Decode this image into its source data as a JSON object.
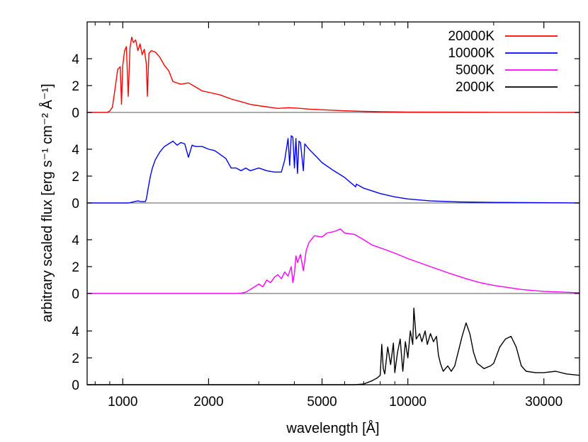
{
  "chart_data": {
    "type": "line",
    "xlabel": "wavelength [Å]",
    "ylabel": "arbitrary scaled flux [erg s⁻¹ cm⁻² Å⁻¹]",
    "xscale": "log",
    "xlim": [
      750,
      40000
    ],
    "xticks": [
      1000,
      2000,
      5000,
      10000,
      30000
    ],
    "xtick_labels": [
      "1000",
      "2000",
      "5000",
      "10000",
      "30000"
    ],
    "yticks": [
      0,
      2,
      4
    ],
    "ytick_labels": [
      "0",
      "2",
      "4"
    ],
    "panel_ylim": [
      0,
      6
    ],
    "legend": "top-right",
    "grid": false,
    "series": [
      {
        "name": "20000K",
        "color": "#ff0000",
        "points": [
          [
            750,
            0
          ],
          [
            880,
            0
          ],
          [
            900,
            0.1
          ],
          [
            920,
            0.4
          ],
          [
            940,
            1.8
          ],
          [
            960,
            3.2
          ],
          [
            980,
            3.4
          ],
          [
            990,
            0.6
          ],
          [
            1000,
            3.5
          ],
          [
            1015,
            4.6
          ],
          [
            1030,
            4.9
          ],
          [
            1045,
            1.2
          ],
          [
            1060,
            4.8
          ],
          [
            1075,
            5.6
          ],
          [
            1090,
            5.2
          ],
          [
            1110,
            5.4
          ],
          [
            1130,
            4.6
          ],
          [
            1150,
            5.1
          ],
          [
            1170,
            4.3
          ],
          [
            1190,
            4.7
          ],
          [
            1210,
            3.6
          ],
          [
            1220,
            1.2
          ],
          [
            1235,
            4.4
          ],
          [
            1260,
            4.6
          ],
          [
            1300,
            4.5
          ],
          [
            1350,
            4.1
          ],
          [
            1400,
            3.5
          ],
          [
            1450,
            3.1
          ],
          [
            1500,
            2.3
          ],
          [
            1600,
            2.1
          ],
          [
            1700,
            2.2
          ],
          [
            1800,
            1.9
          ],
          [
            1900,
            1.6
          ],
          [
            2000,
            1.5
          ],
          [
            2200,
            1.3
          ],
          [
            2400,
            1.0
          ],
          [
            2600,
            0.8
          ],
          [
            2800,
            0.6
          ],
          [
            3000,
            0.5
          ],
          [
            3500,
            0.3
          ],
          [
            3800,
            0.35
          ],
          [
            4100,
            0.32
          ],
          [
            4500,
            0.25
          ],
          [
            5000,
            0.2
          ],
          [
            6000,
            0.12
          ],
          [
            7000,
            0.08
          ],
          [
            8000,
            0.06
          ],
          [
            10000,
            0.03
          ],
          [
            15000,
            0.02
          ],
          [
            20000,
            0.01
          ],
          [
            30000,
            0.005
          ],
          [
            40000,
            0
          ]
        ]
      },
      {
        "name": "10000K",
        "color": "#0000ff",
        "points": [
          [
            750,
            0
          ],
          [
            1050,
            0
          ],
          [
            1100,
            0.1
          ],
          [
            1130,
            0.15
          ],
          [
            1160,
            0.1
          ],
          [
            1200,
            0.1
          ],
          [
            1210,
            0.3
          ],
          [
            1230,
            1.2
          ],
          [
            1250,
            2.0
          ],
          [
            1270,
            2.6
          ],
          [
            1300,
            3.2
          ],
          [
            1350,
            3.8
          ],
          [
            1400,
            4.2
          ],
          [
            1450,
            4.4
          ],
          [
            1500,
            4.6
          ],
          [
            1550,
            4.3
          ],
          [
            1600,
            4.5
          ],
          [
            1650,
            4.4
          ],
          [
            1700,
            3.4
          ],
          [
            1750,
            4.3
          ],
          [
            1800,
            4.2
          ],
          [
            1900,
            4.2
          ],
          [
            2000,
            4.0
          ],
          [
            2100,
            3.9
          ],
          [
            2200,
            3.6
          ],
          [
            2300,
            3.3
          ],
          [
            2400,
            2.6
          ],
          [
            2500,
            2.6
          ],
          [
            2600,
            2.4
          ],
          [
            2700,
            2.6
          ],
          [
            2800,
            2.4
          ],
          [
            3000,
            2.6
          ],
          [
            3200,
            2.4
          ],
          [
            3400,
            2.3
          ],
          [
            3600,
            2.3
          ],
          [
            3700,
            3.2
          ],
          [
            3800,
            4.8
          ],
          [
            3850,
            2.8
          ],
          [
            3900,
            5.0
          ],
          [
            3950,
            4.9
          ],
          [
            4000,
            2.6
          ],
          [
            4050,
            4.8
          ],
          [
            4100,
            2.2
          ],
          [
            4150,
            4.6
          ],
          [
            4200,
            4.5
          ],
          [
            4300,
            2.4
          ],
          [
            4350,
            4.4
          ],
          [
            4500,
            4.0
          ],
          [
            4800,
            3.4
          ],
          [
            5000,
            3.0
          ],
          [
            5500,
            2.4
          ],
          [
            6000,
            1.9
          ],
          [
            6560,
            1.2
          ],
          [
            6600,
            1.4
          ],
          [
            7000,
            1.1
          ],
          [
            8000,
            0.7
          ],
          [
            9000,
            0.45
          ],
          [
            10000,
            0.3
          ],
          [
            12000,
            0.15
          ],
          [
            15000,
            0.08
          ],
          [
            20000,
            0.04
          ],
          [
            30000,
            0.02
          ],
          [
            40000,
            0
          ]
        ]
      },
      {
        "name": "5000K",
        "color": "#ff00ff",
        "points": [
          [
            750,
            0
          ],
          [
            2500,
            0
          ],
          [
            2600,
            0.02
          ],
          [
            2700,
            0.1
          ],
          [
            2800,
            0.3
          ],
          [
            2900,
            0.5
          ],
          [
            3000,
            0.7
          ],
          [
            3100,
            0.5
          ],
          [
            3200,
            1.0
          ],
          [
            3300,
            0.8
          ],
          [
            3400,
            1.2
          ],
          [
            3500,
            1.4
          ],
          [
            3600,
            1.1
          ],
          [
            3700,
            1.6
          ],
          [
            3800,
            1.3
          ],
          [
            3900,
            2.0
          ],
          [
            3950,
            0.8
          ],
          [
            4000,
            1.5
          ],
          [
            4050,
            2.8
          ],
          [
            4100,
            2.3
          ],
          [
            4200,
            2.9
          ],
          [
            4300,
            1.7
          ],
          [
            4400,
            3.2
          ],
          [
            4500,
            3.8
          ],
          [
            4700,
            4.3
          ],
          [
            5000,
            4.2
          ],
          [
            5200,
            4.5
          ],
          [
            5500,
            4.6
          ],
          [
            5800,
            4.8
          ],
          [
            6000,
            4.5
          ],
          [
            6500,
            4.4
          ],
          [
            7000,
            4.0
          ],
          [
            7500,
            3.6
          ],
          [
            8000,
            3.4
          ],
          [
            9000,
            3.0
          ],
          [
            10000,
            2.6
          ],
          [
            12000,
            2.0
          ],
          [
            14000,
            1.5
          ],
          [
            16000,
            1.1
          ],
          [
            18000,
            0.8
          ],
          [
            20000,
            0.6
          ],
          [
            25000,
            0.3
          ],
          [
            30000,
            0.15
          ],
          [
            35000,
            0.1
          ],
          [
            40000,
            0.05
          ]
        ]
      },
      {
        "name": "2000K",
        "color": "#000000",
        "points": [
          [
            750,
            0
          ],
          [
            6500,
            0
          ],
          [
            7000,
            0.05
          ],
          [
            7500,
            0.3
          ],
          [
            7800,
            0.5
          ],
          [
            8000,
            0.7
          ],
          [
            8100,
            3.0
          ],
          [
            8200,
            1.2
          ],
          [
            8300,
            0.8
          ],
          [
            8500,
            2.8
          ],
          [
            8700,
            1.5
          ],
          [
            8900,
            3.1
          ],
          [
            9000,
            0.9
          ],
          [
            9200,
            2.4
          ],
          [
            9400,
            3.4
          ],
          [
            9600,
            1.0
          ],
          [
            9800,
            3.2
          ],
          [
            10000,
            2.0
          ],
          [
            10200,
            4.0
          ],
          [
            10400,
            3.0
          ],
          [
            10500,
            5.7
          ],
          [
            10700,
            3.4
          ],
          [
            11000,
            3.8
          ],
          [
            11200,
            3.2
          ],
          [
            11500,
            4.0
          ],
          [
            11700,
            3.0
          ],
          [
            12000,
            3.8
          ],
          [
            12300,
            3.2
          ],
          [
            12600,
            3.6
          ],
          [
            12800,
            2.2
          ],
          [
            13000,
            1.6
          ],
          [
            13300,
            1.0
          ],
          [
            13800,
            1.4
          ],
          [
            14200,
            1.0
          ],
          [
            14600,
            1.4
          ],
          [
            15000,
            2.4
          ],
          [
            15500,
            3.6
          ],
          [
            16000,
            4.6
          ],
          [
            16500,
            3.8
          ],
          [
            17000,
            2.4
          ],
          [
            17500,
            1.6
          ],
          [
            18500,
            1.2
          ],
          [
            19500,
            1.4
          ],
          [
            20000,
            1.6
          ],
          [
            21000,
            2.8
          ],
          [
            22000,
            3.4
          ],
          [
            23000,
            3.6
          ],
          [
            24000,
            2.8
          ],
          [
            25000,
            1.4
          ],
          [
            26000,
            1.0
          ],
          [
            28000,
            0.9
          ],
          [
            30000,
            0.9
          ],
          [
            33000,
            1.0
          ],
          [
            36000,
            0.8
          ],
          [
            40000,
            0.7
          ]
        ]
      }
    ]
  }
}
